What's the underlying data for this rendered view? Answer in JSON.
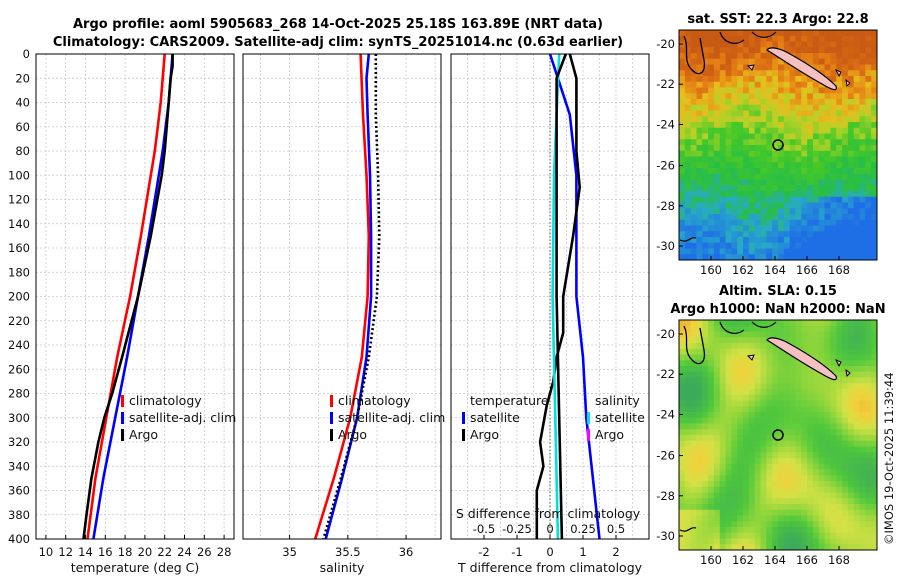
{
  "header": {
    "title_line1": "Argo profile: aoml 5905683_268 14-Oct-2025 25.18S 163.89E (NRT data)",
    "title_line2": "Climatology: CARS2009. Satellite-adj clim: synTS_20251014.nc (0.63d earlier)"
  },
  "colors": {
    "climatology": "#ff0000",
    "satellite": "#0000ff",
    "argo": "#000000",
    "salinity_diff": "#00e0e0",
    "salinity_argo_diff": "#ff00ff"
  },
  "legend": {
    "climatology": "climatology",
    "satellite_adj": "satellite-adj. clim",
    "argo": "Argo",
    "diff_temperature": "temperature",
    "diff_salinity": "salinity",
    "diff_satellite": "satellite",
    "diff_argo": "Argo"
  },
  "chart_data": [
    {
      "id": "temperature",
      "type": "line",
      "xlabel": "temperature (deg C)",
      "xlim": [
        9,
        29
      ],
      "xticks": [
        10,
        12,
        14,
        16,
        18,
        20,
        22,
        24,
        26,
        28
      ],
      "ylim": [
        0,
        400
      ],
      "yticks": [
        0,
        20,
        40,
        60,
        80,
        100,
        120,
        140,
        160,
        180,
        200,
        220,
        240,
        260,
        280,
        300,
        320,
        340,
        360,
        380,
        400
      ],
      "series": [
        {
          "name": "climatology",
          "depth": [
            0,
            20,
            40,
            60,
            80,
            100,
            150,
            200,
            250,
            300,
            350,
            400
          ],
          "values": [
            22.0,
            21.8,
            21.6,
            21.3,
            21.0,
            20.6,
            19.6,
            18.5,
            17.2,
            16.1,
            15.0,
            14.2
          ]
        },
        {
          "name": "satellite-adj. clim",
          "depth": [
            0,
            20,
            40,
            60,
            80,
            100,
            150,
            200,
            250,
            300,
            350,
            400
          ],
          "values": [
            22.8,
            22.6,
            22.4,
            22.1,
            21.8,
            21.4,
            20.4,
            19.3,
            18.2,
            17.0,
            15.8,
            14.8
          ]
        },
        {
          "name": "Argo",
          "depth": [
            0,
            10,
            20,
            40,
            60,
            80,
            100,
            150,
            200,
            250,
            280,
            300,
            320,
            350,
            380,
            400
          ],
          "values": [
            22.8,
            22.8,
            22.6,
            22.4,
            22.2,
            22.0,
            21.7,
            20.6,
            19.3,
            17.7,
            16.7,
            15.9,
            15.3,
            14.6,
            14.1,
            13.8
          ]
        }
      ]
    },
    {
      "id": "salinity",
      "type": "line",
      "xlabel": "salinity",
      "xlim": [
        34.6,
        36.3
      ],
      "xticks": [
        35,
        35.5,
        36
      ],
      "ylim": [
        0,
        400
      ],
      "series": [
        {
          "name": "climatology",
          "depth": [
            0,
            50,
            100,
            150,
            200,
            250,
            300,
            350,
            400
          ],
          "values": [
            35.61,
            35.63,
            35.66,
            35.68,
            35.67,
            35.62,
            35.52,
            35.38,
            35.22
          ]
        },
        {
          "name": "satellite-adj. clim",
          "depth": [
            0,
            20,
            50,
            100,
            150,
            200,
            250,
            300,
            350,
            400
          ],
          "values": [
            35.68,
            35.66,
            35.67,
            35.69,
            35.7,
            35.7,
            35.66,
            35.58,
            35.45,
            35.31
          ]
        },
        {
          "name": "Argo",
          "depth": [
            0,
            50,
            100,
            150,
            200,
            250,
            300,
            350,
            400
          ],
          "values": [
            35.74,
            35.74,
            35.76,
            35.77,
            35.75,
            35.68,
            35.58,
            35.44,
            35.29
          ]
        }
      ]
    },
    {
      "id": "difference",
      "type": "line",
      "xlabel": "T difference from climatology",
      "xlim": [
        -3,
        3
      ],
      "xticks": [
        -2,
        -1,
        0,
        1,
        2
      ],
      "secondary_xlabel": "S difference from climatology",
      "secondary_ticks": [
        "-0.5",
        "-0.25",
        "0",
        "0.25",
        "0.5"
      ],
      "ylim": [
        0,
        400
      ],
      "series": [
        {
          "name": "temperature satellite",
          "depth": [
            0,
            50,
            100,
            150,
            200,
            250,
            300,
            350,
            400
          ],
          "values": [
            0.0,
            0.6,
            0.8,
            0.8,
            0.8,
            1.0,
            1.1,
            1.3,
            1.5
          ]
        },
        {
          "name": "temperature Argo",
          "depth": [
            0,
            20,
            50,
            80,
            110,
            150,
            200,
            230,
            250,
            270,
            290,
            320,
            340,
            360,
            380,
            400
          ],
          "values": [
            0.6,
            0.8,
            0.8,
            0.8,
            0.9,
            0.7,
            0.4,
            0.4,
            0.2,
            0.1,
            -0.1,
            -0.3,
            -0.2,
            -0.4,
            -0.4,
            -0.4
          ]
        },
        {
          "name": "salinity satellite",
          "depth": [
            0,
            100,
            200,
            300,
            400
          ],
          "values": [
            0.07,
            0.03,
            0.02,
            0.04,
            0.06
          ]
        },
        {
          "name": "salinity Argo",
          "depth": [
            0,
            20,
            100,
            200,
            300,
            400
          ],
          "values": [
            0.12,
            0.05,
            0.05,
            0.05,
            0.07,
            0.09
          ]
        }
      ]
    }
  ],
  "map_sst": {
    "title": "sat. SST: 22.3  Argo: 22.8",
    "xticks": [
      "160",
      "162",
      "164",
      "166",
      "168"
    ],
    "yticks": [
      "-20",
      "-22",
      "-24",
      "-26",
      "-28",
      "-30"
    ]
  },
  "map_sla": {
    "title_line1": "Altim. SLA: 0.15",
    "title_line2": "Argo h1000: NaN  h2000: NaN",
    "xticks": [
      "160",
      "162",
      "164",
      "166",
      "168"
    ],
    "yticks": [
      "-20",
      "-22",
      "-24",
      "-26",
      "-28",
      "-30"
    ]
  },
  "credit": "©IMOS 19-Oct-2025 11:39:44"
}
